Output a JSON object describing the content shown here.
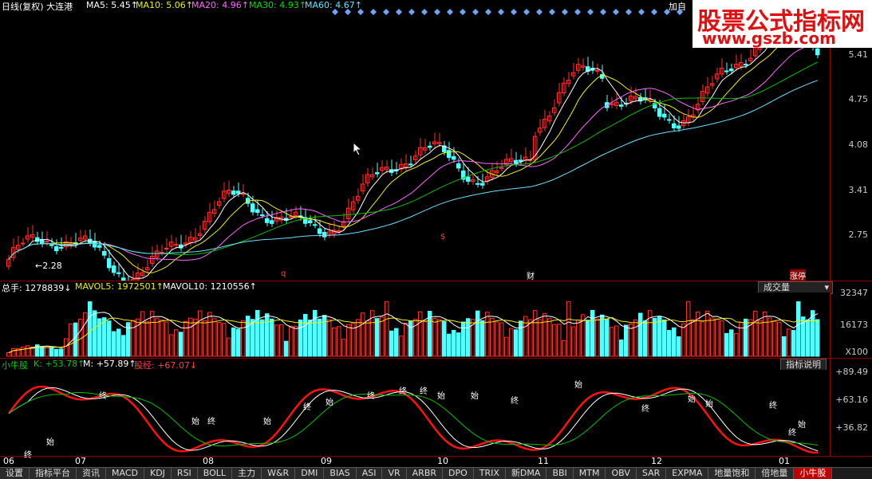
{
  "header": {
    "title": "日线(复权) 大连港",
    "ma5": "MA5: 5.45↑",
    "ma10": "MA10: 5.06↑",
    "ma20": "MA20: 4.96↑",
    "ma30": "MA30: 4.93↑",
    "ma60": "MA60: 4.67↑",
    "right_label": "加自"
  },
  "watermark": {
    "line1": "股票公式指标网",
    "line2": "www.gszb.com"
  },
  "price_panel": {
    "ticks": [
      "5.41",
      "4.75",
      "4.08",
      "3.41",
      "2.75"
    ],
    "low_label": "←2.28",
    "marks": [
      "q",
      "财",
      "涨停"
    ],
    "dollar": "$"
  },
  "volume_panel": {
    "zongshou": "总手: 1278839↓",
    "mavol5": "MAVOL5: 1972501↑",
    "mavol10": "MAVOL10: 1210556↑",
    "selector": "成交量",
    "ticks": [
      "32347",
      "16173",
      "X100"
    ]
  },
  "indicator_panel": {
    "name": "小牛股",
    "k": "K: +53.78↑",
    "m": "M: +57.89↑",
    "gujing": "股经: +67.07↓",
    "help_button": "指标说明",
    "ticks": [
      "+89.49",
      "+63.16",
      "+36.82"
    ],
    "marks": [
      "终",
      "始",
      "终",
      "始",
      "终",
      "始",
      "终",
      "始",
      "终",
      "终",
      "终",
      "始",
      "始",
      "终",
      "始",
      "终",
      "始",
      "始",
      "终",
      "终",
      "始"
    ]
  },
  "x_axis": [
    "06",
    "07",
    "08",
    "09",
    "10",
    "11",
    "12",
    "01"
  ],
  "tabs": [
    "设置",
    "指标平台",
    "资讯",
    "MACD",
    "KDJ",
    "RSI",
    "BOLL",
    "主力",
    "W&R",
    "DMI",
    "BIAS",
    "ASI",
    "VR",
    "ARBR",
    "DPO",
    "TRIX",
    "新DMA",
    "BBI",
    "MTM",
    "OBV",
    "SAR",
    "EXPMA",
    "地量饱和",
    "倍地量",
    "小牛股"
  ],
  "active_tab": "小牛股",
  "colors": {
    "up": "#ff3030",
    "down": "#54ffff",
    "ma5": "#ffffff",
    "ma10": "#f0f000",
    "ma20": "#ff66ff",
    "ma30": "#00c000",
    "ma60": "#66e0ff",
    "kline": "#ff1010"
  }
}
